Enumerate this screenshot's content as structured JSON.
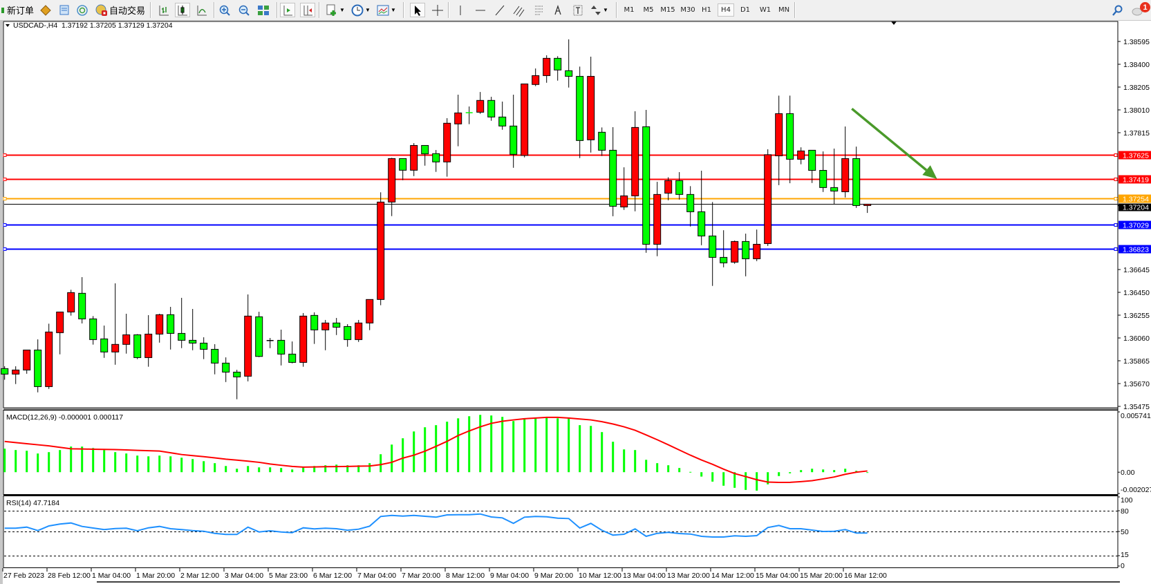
{
  "toolbar": {
    "new_order_label": "新订单",
    "auto_trade_label": "自动交易",
    "timeframes": [
      "M1",
      "M5",
      "M15",
      "M30",
      "H1",
      "H4",
      "D1",
      "W1",
      "MN"
    ],
    "active_timeframe": "H4",
    "notification_count": "1",
    "icons": [
      "new-order-icon",
      "market-watch-icon",
      "navigator-icon",
      "signals-icon",
      "auto-trading-icon",
      "bar-chart-icon",
      "candlestick-icon",
      "line-chart-icon",
      "zoom-in-icon",
      "zoom-out-icon",
      "tile-windows-icon",
      "auto-scroll-icon",
      "chart-shift-icon",
      "new-chart-icon",
      "periods-icon",
      "templates-icon",
      "cursor-icon",
      "crosshair-icon",
      "vertical-line-icon",
      "horizontal-line-icon",
      "trendline-icon",
      "equidistant-channel-icon",
      "fibonacci-icon",
      "text-icon",
      "text-label-icon",
      "arrows-icon",
      "search-icon",
      "notification-icon"
    ]
  },
  "chart_data": [
    {
      "type": "candlestick",
      "header": "USDCAD-,H4  1.37192 1.37205 1.37129 1.37204",
      "colors": {
        "bull": "#ff0000",
        "bear": "#00ff00",
        "outline": "#000000"
      },
      "ylim": [
        1.35475,
        1.38595
      ],
      "y_tick_labels": [
        "1.38595",
        "1.38400",
        "1.38205",
        "1.38010",
        "1.37815",
        "1.36645",
        "1.36450",
        "1.36255",
        "1.36060",
        "1.35865",
        "1.35670",
        "1.35475"
      ],
      "x_tick_labels": [
        "27 Feb 2023",
        "28 Feb 12:00",
        "1 Mar 04:00",
        "1 Mar 20:00",
        "2 Mar 12:00",
        "3 Mar 04:00",
        "5 Mar 23:00",
        "6 Mar 12:00",
        "7 Mar 04:00",
        "7 Mar 20:00",
        "8 Mar 12:00",
        "9 Mar 04:00",
        "9 Mar 20:00",
        "10 Mar 12:00",
        "13 Mar 04:00",
        "13 Mar 20:00",
        "14 Mar 12:00",
        "15 Mar 04:00",
        "15 Mar 20:00",
        "16 Mar 12:00"
      ],
      "horizontal_lines": [
        {
          "price": "1.37625",
          "color": "#ff0000"
        },
        {
          "price": "1.37419",
          "color": "#ff0000"
        },
        {
          "price": "1.37254",
          "color": "#ffa500"
        },
        {
          "price": "1.37029",
          "color": "#0000ff"
        },
        {
          "price": "1.36823",
          "color": "#0000ff"
        }
      ],
      "current_price": {
        "price": "1.37204",
        "color": "#000000"
      },
      "arrow_annotation": {
        "from_bar": 76.6,
        "from_price": 1.3802,
        "to_bar": 84.3,
        "to_price": 1.3742,
        "color": "#4a9a2a"
      },
      "ohlc": [
        [
          1.35798,
          1.35818,
          1.35703,
          1.35751
        ],
        [
          1.35751,
          1.35818,
          1.35666,
          1.35786
        ],
        [
          1.35786,
          1.35957,
          1.35754,
          1.35957
        ],
        [
          1.35957,
          1.36048,
          1.35595,
          1.35644
        ],
        [
          1.35644,
          1.36182,
          1.35624,
          1.36111
        ],
        [
          1.36105,
          1.36282,
          1.3592,
          1.36282
        ],
        [
          1.36282,
          1.36472,
          1.36251,
          1.36448
        ],
        [
          1.36442,
          1.3658,
          1.36184,
          1.36223
        ],
        [
          1.36223,
          1.36247,
          1.36003,
          1.36046
        ],
        [
          1.36052,
          1.36166,
          1.3589,
          1.3594
        ],
        [
          1.3594,
          1.36527,
          1.35831,
          1.36005
        ],
        [
          1.36005,
          1.36267,
          1.35926,
          1.36087
        ],
        [
          1.36087,
          1.36093,
          1.35879,
          1.35892
        ],
        [
          1.35892,
          1.36255,
          1.35814,
          1.36093
        ],
        [
          1.36093,
          1.36267,
          1.3602,
          1.36259
        ],
        [
          1.36259,
          1.36326,
          1.35961,
          1.36099
        ],
        [
          1.36099,
          1.36403,
          1.35973,
          1.3604
        ],
        [
          1.3604,
          1.36308,
          1.35955,
          1.36016
        ],
        [
          1.36016,
          1.36066,
          1.35879,
          1.35963
        ],
        [
          1.35963,
          1.36007,
          1.35749,
          1.35845
        ],
        [
          1.35845,
          1.35894,
          1.35683,
          1.35768
        ],
        [
          1.35768,
          1.35788,
          1.35536,
          1.35727
        ],
        [
          1.35733,
          1.36432,
          1.35689,
          1.36247
        ],
        [
          1.36241,
          1.36284,
          1.35896,
          1.35902
        ],
        [
          1.36038,
          1.3606,
          1.35973,
          1.36038
        ],
        [
          1.3604,
          1.36131,
          1.35825,
          1.35922
        ],
        [
          1.35922,
          1.3603,
          1.35843,
          1.35851
        ],
        [
          1.35851,
          1.36273,
          1.35814,
          1.36247
        ],
        [
          1.36253,
          1.36279,
          1.36009,
          1.36129
        ],
        [
          1.36129,
          1.36214,
          1.35955,
          1.36188
        ],
        [
          1.36188,
          1.36231,
          1.36085,
          1.36152
        ],
        [
          1.36158,
          1.36178,
          1.35985,
          1.36046
        ],
        [
          1.36046,
          1.36214,
          1.36026,
          1.36188
        ],
        [
          1.36188,
          1.36389,
          1.36127,
          1.36389
        ],
        [
          1.36389,
          1.37305,
          1.3634,
          1.37222
        ],
        [
          1.37222,
          1.376,
          1.37102,
          1.37594
        ],
        [
          1.37594,
          1.37594,
          1.37409,
          1.37494
        ],
        [
          1.37494,
          1.37726,
          1.37444,
          1.37706
        ],
        [
          1.37706,
          1.37706,
          1.37533,
          1.37634
        ],
        [
          1.37636,
          1.37667,
          1.3748,
          1.37565
        ],
        [
          1.37565,
          1.37939,
          1.37439,
          1.37896
        ],
        [
          1.3789,
          1.3814,
          1.37699,
          1.37984
        ],
        [
          1.37986,
          1.38039,
          1.37888,
          1.37984
        ],
        [
          1.3799,
          1.38163,
          1.37976,
          1.38091
        ],
        [
          1.38091,
          1.38122,
          1.37917,
          1.37949
        ],
        [
          1.37949,
          1.38081,
          1.3784,
          1.37872
        ],
        [
          1.37872,
          1.3814,
          1.37515,
          1.3763
        ],
        [
          1.3762,
          1.38232,
          1.37604,
          1.38232
        ],
        [
          1.38227,
          1.38364,
          1.38213,
          1.38303
        ],
        [
          1.38303,
          1.38477,
          1.38242,
          1.38451
        ],
        [
          1.38451,
          1.38469,
          1.3826,
          1.38351
        ],
        [
          1.38345,
          1.38613,
          1.38201,
          1.38297
        ],
        [
          1.38297,
          1.3838,
          1.37598,
          1.37748
        ],
        [
          1.37754,
          1.38465,
          1.37645,
          1.38297
        ],
        [
          1.37819,
          1.3786,
          1.37616,
          1.37665
        ],
        [
          1.37665,
          1.37862,
          1.37101,
          1.37186
        ],
        [
          1.3718,
          1.37519,
          1.37155,
          1.37275
        ],
        [
          1.37275,
          1.37998,
          1.37143,
          1.3786
        ],
        [
          1.37866,
          1.3801,
          1.36788,
          1.36861
        ],
        [
          1.36861,
          1.37395,
          1.36759,
          1.37287
        ],
        [
          1.37298,
          1.37434,
          1.37237,
          1.37405
        ],
        [
          1.37405,
          1.37478,
          1.37243,
          1.37287
        ],
        [
          1.37287,
          1.37358,
          1.37013,
          1.37139
        ],
        [
          1.37139,
          1.3749,
          1.36853,
          1.36932
        ],
        [
          1.36932,
          1.37222,
          1.36505,
          1.36749
        ],
        [
          1.36749,
          1.36981,
          1.36664,
          1.36702
        ],
        [
          1.36708,
          1.36893,
          1.36694,
          1.36885
        ],
        [
          1.36885,
          1.36952,
          1.36587,
          1.36737
        ],
        [
          1.36737,
          1.36987,
          1.36717,
          1.36861
        ],
        [
          1.36867,
          1.37673,
          1.36847,
          1.37627
        ],
        [
          1.37617,
          1.38132,
          1.37367,
          1.37978
        ],
        [
          1.37978,
          1.38132,
          1.37383,
          1.37588
        ],
        [
          1.37588,
          1.3769,
          1.37545,
          1.37659
        ],
        [
          1.37665,
          1.37665,
          1.37385,
          1.37493
        ],
        [
          1.37493,
          1.37655,
          1.37308,
          1.37346
        ],
        [
          1.37346,
          1.37679,
          1.37206,
          1.37316
        ],
        [
          1.3731,
          1.37868,
          1.37261,
          1.37594
        ],
        [
          1.37594,
          1.37696,
          1.37172,
          1.37192
        ],
        [
          1.37192,
          1.37205,
          1.37129,
          1.37204
        ]
      ]
    },
    {
      "type": "bar+line",
      "title": "MACD(12,26,9) -0.000001 0.000117",
      "ylim": [
        -0.002027,
        0.005741
      ],
      "y_tick_labels": [
        "0.005741",
        "0.00",
        "-0.002027"
      ],
      "colors": {
        "histogram": "#00ff00",
        "signal": "#ff0000"
      },
      "histogram": [
        0.00224,
        0.00211,
        0.00204,
        0.00178,
        0.00191,
        0.00211,
        0.00244,
        0.00244,
        0.0023,
        0.00211,
        0.00191,
        0.00178,
        0.00158,
        0.00151,
        0.00158,
        0.00151,
        0.00138,
        0.00125,
        0.00105,
        0.00086,
        0.00059,
        0.00033,
        0.00059,
        0.00046,
        0.00046,
        0.0004,
        0.00026,
        0.00046,
        0.00059,
        0.00066,
        0.00072,
        0.00066,
        0.00066,
        0.00086,
        0.00171,
        0.00263,
        0.00323,
        0.00388,
        0.00428,
        0.00448,
        0.00481,
        0.00513,
        0.00533,
        0.00546,
        0.0054,
        0.00527,
        0.00487,
        0.00507,
        0.0052,
        0.00527,
        0.00513,
        0.00513,
        0.00448,
        0.00441,
        0.00382,
        0.0029,
        0.00217,
        0.00211,
        0.00118,
        0.00086,
        0.00066,
        0.0004,
        3e-05,
        -0.00042,
        -0.0009,
        -0.00129,
        -0.00149,
        -0.00169,
        -0.00176,
        -0.00116,
        -0.00037,
        -0.00011,
        0.0002,
        0.00033,
        0.00026,
        0.0002,
        0.00033,
        0.00013,
        -1e-06
      ],
      "signal": [
        0.00293,
        0.00282,
        0.00271,
        0.00261,
        0.00251,
        0.00237,
        0.00223,
        0.00221,
        0.00219,
        0.00217,
        0.00215,
        0.00212,
        0.00208,
        0.00205,
        0.00201,
        0.00185,
        0.00168,
        0.00158,
        0.00148,
        0.00136,
        0.00124,
        0.00115,
        0.00105,
        0.00094,
        0.00078,
        0.00066,
        0.00055,
        0.00048,
        0.0005,
        0.00052,
        0.00053,
        0.00055,
        0.00057,
        0.00059,
        0.00072,
        0.00094,
        0.00134,
        0.00162,
        0.002,
        0.00246,
        0.00294,
        0.00349,
        0.00393,
        0.00432,
        0.00465,
        0.00485,
        0.00498,
        0.00509,
        0.00516,
        0.00522,
        0.00522,
        0.00516,
        0.00507,
        0.00498,
        0.00481,
        0.00459,
        0.00432,
        0.00399,
        0.00355,
        0.00309,
        0.00261,
        0.00211,
        0.00162,
        0.00116,
        0.00075,
        0.00029,
        -0.00013,
        -0.00042,
        -0.00072,
        -0.00094,
        -0.00097,
        -0.00097,
        -0.0009,
        -0.00081,
        -0.00064,
        -0.00046,
        -0.0002,
        0.0,
        0.000117
      ]
    },
    {
      "type": "line",
      "title": "RSI(14) 47.7184",
      "ylim": [
        0,
        100
      ],
      "levels": [
        80,
        50,
        15
      ],
      "y_tick_labels": [
        "100",
        "80",
        "50",
        "15",
        "0"
      ],
      "color": "#1e90ff",
      "values": [
        54.7,
        54.7,
        56.3,
        51.3,
        58,
        60.7,
        62.3,
        57.3,
        55,
        52.7,
        54.3,
        54.7,
        51,
        55.3,
        57.3,
        54,
        52.7,
        51.3,
        50.3,
        47.3,
        45.7,
        45.7,
        56.3,
        49.3,
        51,
        49.3,
        48.3,
        55.3,
        53.7,
        54.7,
        54,
        51.7,
        53.3,
        57.7,
        71.7,
        73.3,
        72.3,
        73.3,
        72,
        70.7,
        74,
        74.3,
        74.3,
        75.3,
        71,
        69.7,
        61.7,
        70.7,
        71.7,
        71.3,
        69.3,
        68.7,
        55,
        61.7,
        51.7,
        44.7,
        46,
        53.7,
        43,
        47.3,
        48.7,
        47,
        46.3,
        43,
        42,
        42,
        43.7,
        43,
        44,
        55.7,
        58.7,
        54,
        54,
        52,
        50,
        50.3,
        52.7,
        47.7,
        47.7
      ]
    }
  ]
}
